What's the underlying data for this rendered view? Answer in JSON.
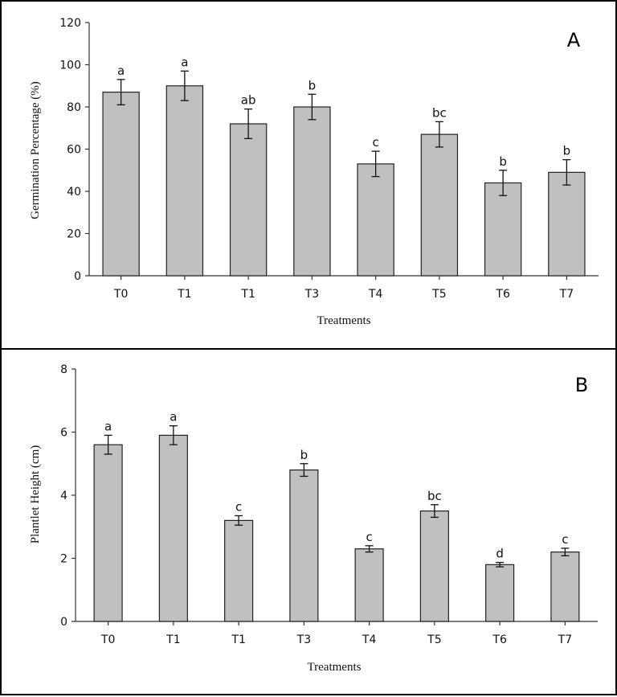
{
  "chart_data": [
    {
      "type": "bar",
      "panel_label": "A",
      "xlabel": "Treatments",
      "ylabel": "Germination Percentage (%)",
      "ylim": [
        0,
        120
      ],
      "yticks": [
        "0",
        "20",
        "40",
        "60",
        "80",
        "100",
        "120"
      ],
      "categories": [
        "T0",
        "T1",
        "T1",
        "T3",
        "T4",
        "T5",
        "T6",
        "T7"
      ],
      "values": [
        87,
        90,
        72,
        80,
        53,
        67,
        44,
        49
      ],
      "errors": [
        6,
        7,
        7,
        6,
        6,
        6,
        6,
        6
      ],
      "labels": [
        "a",
        "a",
        "ab",
        "b",
        "c",
        "bc",
        "b",
        "b"
      ],
      "bar_color": "#c0c0c0",
      "grid": false
    },
    {
      "type": "bar",
      "panel_label": "B",
      "xlabel": "Treatments",
      "ylabel": "Plantlet Height (cm)",
      "ylim": [
        0,
        8
      ],
      "yticks": [
        "0",
        "2",
        "4",
        "6",
        "8"
      ],
      "categories": [
        "T0",
        "T1",
        "T1",
        "T3",
        "T4",
        "T5",
        "T6",
        "T7"
      ],
      "values": [
        5.6,
        5.9,
        3.2,
        4.8,
        2.3,
        3.5,
        1.8,
        2.2
      ],
      "errors": [
        0.3,
        0.3,
        0.15,
        0.2,
        0.1,
        0.2,
        0.07,
        0.12
      ],
      "labels": [
        "a",
        "a",
        "c",
        "b",
        "c",
        "bc",
        "d",
        "c"
      ],
      "bar_color": "#c0c0c0",
      "grid": false
    }
  ]
}
